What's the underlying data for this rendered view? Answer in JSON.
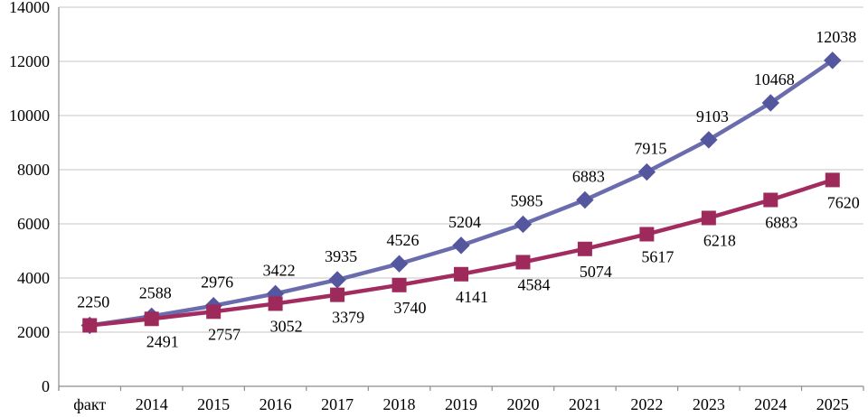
{
  "chart_data": {
    "type": "line",
    "title": "",
    "xlabel": "",
    "ylabel": "",
    "categories": [
      "факт",
      "2014",
      "2015",
      "2016",
      "2017",
      "2018",
      "2019",
      "2020",
      "2021",
      "2022",
      "2023",
      "2024",
      "2025"
    ],
    "series": [
      {
        "name": "blue-diamond-series",
        "marker": "diamond",
        "line_color": "#6B6CAD",
        "marker_color": "#55579E",
        "values": [
          2250,
          2588,
          2976,
          3422,
          3935,
          4526,
          5204,
          5985,
          6883,
          7915,
          9103,
          10468,
          12038
        ],
        "labels": [
          "2250",
          "2588",
          "2976",
          "3422",
          "3935",
          "4526",
          "5204",
          "5985",
          "6883",
          "7915",
          "9103",
          "10468",
          "12038"
        ],
        "label_position": "above",
        "hide_first_label": false
      },
      {
        "name": "red-square-series",
        "marker": "square",
        "line_color": "#A22C5F",
        "marker_color": "#9E2A5C",
        "values": [
          2250,
          2491,
          2757,
          3052,
          3379,
          3740,
          4141,
          4584,
          5074,
          5617,
          6218,
          6883,
          7620
        ],
        "labels": [
          "2250",
          "2491",
          "2757",
          "3052",
          "3379",
          "3740",
          "4141",
          "4584",
          "5074",
          "5617",
          "6218",
          "6883",
          "7620"
        ],
        "label_position": "below",
        "hide_first_label": true
      }
    ],
    "y_ticks": [
      "0",
      "2000",
      "4000",
      "6000",
      "8000",
      "10000",
      "12000",
      "14000"
    ],
    "ylim": [
      0,
      14000
    ],
    "ytick_step": 2000,
    "grid": true,
    "legend_position": "none",
    "grid_color": "#C6C6C6",
    "axis_color": "#8C8C8C",
    "label_color": "#000000"
  }
}
